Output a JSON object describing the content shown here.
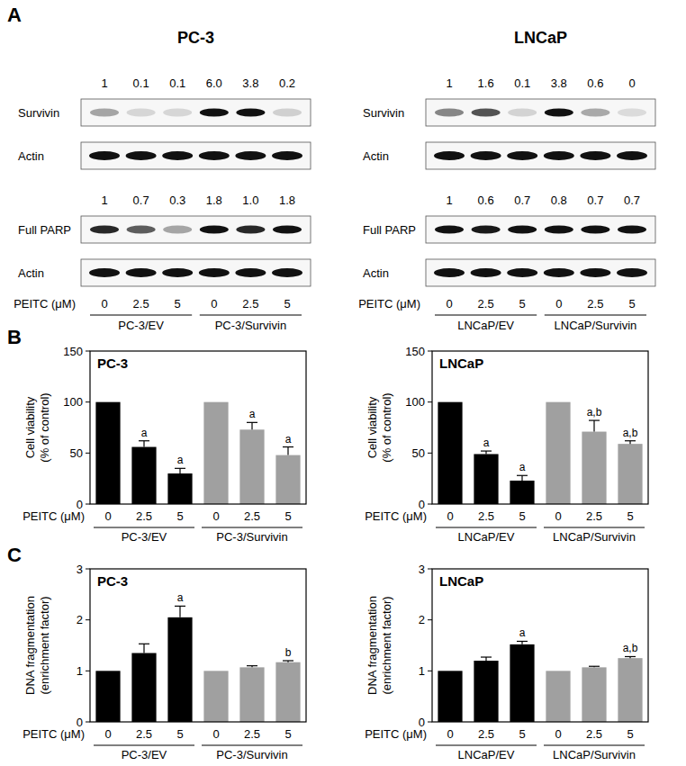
{
  "panel_a": {
    "label": "A",
    "blots": [
      {
        "title": "PC-3",
        "sections": [
          {
            "quant": [
              "1",
              "0.1",
              "0.1",
              "6.0",
              "3.8",
              "0.2"
            ],
            "protein": "Survivin",
            "loading": "Actin"
          },
          {
            "quant": [
              "1",
              "0.7",
              "0.3",
              "1.8",
              "1.0",
              "1.8"
            ],
            "protein": "Full PARP",
            "loading": "Actin"
          }
        ],
        "treatment_label": "PEITC (μM)",
        "doses": [
          0,
          2.5,
          5,
          0,
          2.5,
          5
        ],
        "groups": [
          "PC-3/EV",
          "PC-3/Survivin"
        ]
      },
      {
        "title": "LNCaP",
        "sections": [
          {
            "quant": [
              "1",
              "1.6",
              "0.1",
              "3.8",
              "0.6",
              "0"
            ],
            "protein": "Survivin",
            "loading": "Actin"
          },
          {
            "quant": [
              "1",
              "0.6",
              "0.7",
              "0.8",
              "0.7",
              "0.7"
            ],
            "protein": "Full PARP",
            "loading": "Actin"
          }
        ],
        "treatment_label": "PEITC (μM)",
        "doses": [
          0,
          2.5,
          5,
          0,
          2.5,
          5
        ],
        "groups": [
          "LNCaP/EV",
          "LNCaP/Survivin"
        ]
      }
    ]
  },
  "chart_data": [
    {
      "type": "bar",
      "panel": "B",
      "title": "PC-3",
      "y_label": [
        "Cell viability",
        "(% of control)"
      ],
      "x_label": "PEITC (μM)",
      "categories": [
        0,
        2.5,
        5,
        0,
        2.5,
        5
      ],
      "groups": [
        "PC-3/EV",
        "PC-3/Survivin"
      ],
      "values": [
        100,
        56,
        30,
        100,
        73,
        48
      ],
      "errors": [
        null,
        6,
        5,
        null,
        7,
        8
      ],
      "colors": [
        "#000000",
        "#000000",
        "#000000",
        "#a0a0a0",
        "#a0a0a0",
        "#a0a0a0"
      ],
      "annotations": [
        null,
        "a",
        "a",
        null,
        "a",
        "a"
      ],
      "ylim": [
        0,
        150
      ],
      "yticks": [
        0,
        50,
        100,
        150
      ]
    },
    {
      "type": "bar",
      "title": "LNCaP",
      "y_label": [
        "Cell viability",
        "(% of control)"
      ],
      "x_label": "PEITC (μM)",
      "categories": [
        0,
        2.5,
        5,
        0,
        2.5,
        5
      ],
      "groups": [
        "LNCaP/EV",
        "LNCaP/Survivin"
      ],
      "values": [
        100,
        49,
        23,
        100,
        71,
        59
      ],
      "errors": [
        null,
        3,
        5,
        null,
        11,
        3
      ],
      "colors": [
        "#000000",
        "#000000",
        "#000000",
        "#a0a0a0",
        "#a0a0a0",
        "#a0a0a0"
      ],
      "annotations": [
        null,
        "a",
        "a",
        null,
        "a,b",
        "a,b"
      ],
      "ylim": [
        0,
        150
      ],
      "yticks": [
        0,
        50,
        100,
        150
      ]
    },
    {
      "type": "bar",
      "panel": "C",
      "title": "PC-3",
      "y_label": [
        "DNA fragmentation",
        "(enrichment factor)"
      ],
      "x_label": "PEITC (μM)",
      "categories": [
        0,
        2.5,
        5,
        0,
        2.5,
        5
      ],
      "groups": [
        "PC-3/EV",
        "PC-3/Survivin"
      ],
      "values": [
        1,
        1.35,
        2.05,
        1,
        1.07,
        1.17
      ],
      "errors": [
        null,
        0.18,
        0.22,
        null,
        0.03,
        0.03
      ],
      "colors": [
        "#000000",
        "#000000",
        "#000000",
        "#a0a0a0",
        "#a0a0a0",
        "#a0a0a0"
      ],
      "annotations": [
        null,
        null,
        "a",
        null,
        null,
        "b"
      ],
      "ylim": [
        0,
        3
      ],
      "yticks": [
        0,
        1,
        2,
        3
      ]
    },
    {
      "type": "bar",
      "title": "LNCaP",
      "y_label": [
        "DNA fragmentation",
        "(enrichment factor)"
      ],
      "x_label": "PEITC (μM)",
      "categories": [
        0,
        2.5,
        5,
        0,
        2.5,
        5
      ],
      "groups": [
        "LNCaP/EV",
        "LNCaP/Survivin"
      ],
      "values": [
        1,
        1.2,
        1.52,
        1,
        1.07,
        1.25
      ],
      "errors": [
        null,
        0.07,
        0.06,
        null,
        0.02,
        0.03
      ],
      "colors": [
        "#000000",
        "#000000",
        "#000000",
        "#a0a0a0",
        "#a0a0a0",
        "#a0a0a0"
      ],
      "annotations": [
        null,
        null,
        "a",
        null,
        null,
        "a,b"
      ],
      "ylim": [
        0,
        3
      ],
      "yticks": [
        0,
        1,
        2,
        3
      ]
    }
  ]
}
